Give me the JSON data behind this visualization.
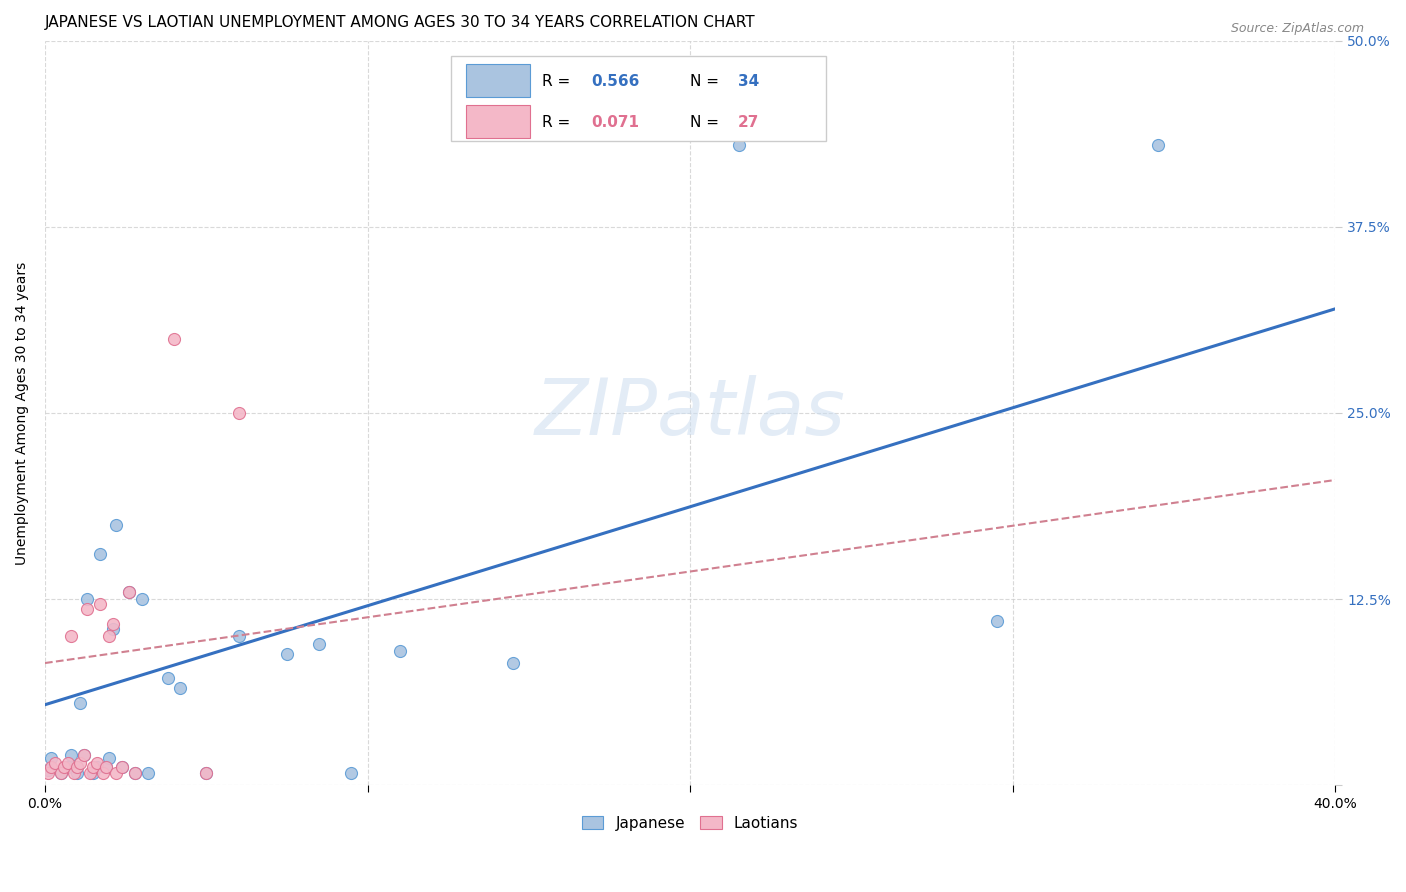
{
  "title": "JAPANESE VS LAOTIAN UNEMPLOYMENT AMONG AGES 30 TO 34 YEARS CORRELATION CHART",
  "source": "Source: ZipAtlas.com",
  "ylabel": "Unemployment Among Ages 30 to 34 years",
  "xlim": [
    0.0,
    0.4
  ],
  "ylim": [
    0.0,
    0.5
  ],
  "xticks": [
    0.0,
    0.1,
    0.2,
    0.3,
    0.4
  ],
  "yticks": [
    0.0,
    0.125,
    0.25,
    0.375,
    0.5
  ],
  "xticklabels": [
    "0.0%",
    "",
    "",
    "",
    "40.0%"
  ],
  "yticklabels": [
    "",
    "12.5%",
    "25.0%",
    "37.5%",
    "50.0%"
  ],
  "background_color": "#ffffff",
  "grid_color": "#d0d0d0",
  "japanese_color": "#aac4e0",
  "japanese_edge_color": "#5b9bd5",
  "laotian_color": "#f4b8c8",
  "laotian_edge_color": "#e07090",
  "japanese_R": 0.566,
  "japanese_N": 34,
  "laotian_R": 0.071,
  "laotian_N": 27,
  "japanese_line_color": "#3570c0",
  "laotian_line_color": "#d08090",
  "japanese_line": [
    0.0,
    0.054,
    0.4,
    0.32
  ],
  "laotian_line": [
    0.0,
    0.082,
    0.4,
    0.205
  ],
  "japanese_points_x": [
    0.001,
    0.002,
    0.005,
    0.007,
    0.008,
    0.01,
    0.01,
    0.011,
    0.012,
    0.013,
    0.015,
    0.016,
    0.017,
    0.019,
    0.02,
    0.021,
    0.022,
    0.024,
    0.026,
    0.028,
    0.03,
    0.032,
    0.038,
    0.042,
    0.05,
    0.06,
    0.075,
    0.085,
    0.095,
    0.11,
    0.145,
    0.215,
    0.295,
    0.345
  ],
  "japanese_points_y": [
    0.01,
    0.018,
    0.008,
    0.012,
    0.02,
    0.008,
    0.012,
    0.055,
    0.02,
    0.125,
    0.008,
    0.012,
    0.155,
    0.012,
    0.018,
    0.105,
    0.175,
    0.012,
    0.13,
    0.008,
    0.125,
    0.008,
    0.072,
    0.065,
    0.008,
    0.1,
    0.088,
    0.095,
    0.008,
    0.09,
    0.082,
    0.43,
    0.11,
    0.43
  ],
  "laotian_points_x": [
    0.001,
    0.002,
    0.003,
    0.005,
    0.006,
    0.007,
    0.008,
    0.009,
    0.01,
    0.011,
    0.012,
    0.013,
    0.014,
    0.015,
    0.016,
    0.017,
    0.018,
    0.019,
    0.02,
    0.021,
    0.022,
    0.024,
    0.026,
    0.028,
    0.04,
    0.05,
    0.06
  ],
  "laotian_points_y": [
    0.008,
    0.012,
    0.015,
    0.008,
    0.012,
    0.015,
    0.1,
    0.008,
    0.012,
    0.015,
    0.02,
    0.118,
    0.008,
    0.012,
    0.015,
    0.122,
    0.008,
    0.012,
    0.1,
    0.108,
    0.008,
    0.012,
    0.13,
    0.008,
    0.3,
    0.008,
    0.25
  ],
  "marker_size": 75,
  "title_fontsize": 11,
  "label_fontsize": 10,
  "tick_fontsize": 10,
  "legend_fontsize": 11
}
